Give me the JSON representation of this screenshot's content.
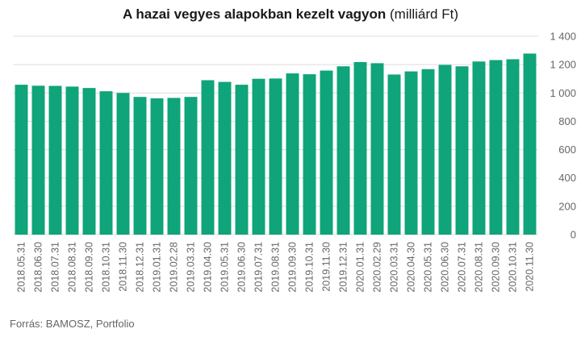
{
  "title": {
    "main": "A hazai vegyes alapokban kezelt vagyon",
    "unit": "(milliárd Ft)"
  },
  "source": "Forrás: BAMOSZ, Portfolio",
  "colors": {
    "bar": "#0fa47a",
    "grid": "#dcdcdc",
    "tick": "#666666"
  },
  "chart_data": {
    "type": "bar",
    "title": "A hazai vegyes alapokban kezelt vagyon (milliárd Ft)",
    "xlabel": "",
    "ylabel": "",
    "ylim": [
      0,
      1400
    ],
    "yticks": [
      0,
      200,
      400,
      600,
      800,
      1000,
      1200,
      1400
    ],
    "ytick_labels": [
      "0",
      "200",
      "400",
      "600",
      "800",
      "1 000",
      "1 200",
      "1 400"
    ],
    "y_axis_position": "right",
    "grid": true,
    "legend": "none",
    "categories": [
      "2018.05.31",
      "2018.06.30",
      "2018.07.31",
      "2018.08.31",
      "2018.09.30",
      "2018.10.31",
      "2018.11.30",
      "2018.12.31",
      "2019.01.31",
      "2019.02.28",
      "2019.03.31",
      "2019.04.30",
      "2019.05.31",
      "2019.06.30",
      "2019.07.31",
      "2019.08.31",
      "2019.09.30",
      "2019.10.31",
      "2019.11.30",
      "2019.12.31",
      "2020.01.31",
      "2020.02.29",
      "2020.03.31",
      "2020.04.30",
      "2020.05.31",
      "2020.06.30",
      "2020.07.31",
      "2020.08.31",
      "2020.09.30",
      "2020.10.31",
      "2020.11.30"
    ],
    "values": [
      1058,
      1051,
      1050,
      1045,
      1035,
      1012,
      1000,
      972,
      962,
      965,
      972,
      1090,
      1078,
      1058,
      1100,
      1102,
      1138,
      1132,
      1158,
      1188,
      1218,
      1210,
      1130,
      1152,
      1168,
      1198,
      1188,
      1222,
      1232,
      1238,
      1278
    ]
  }
}
